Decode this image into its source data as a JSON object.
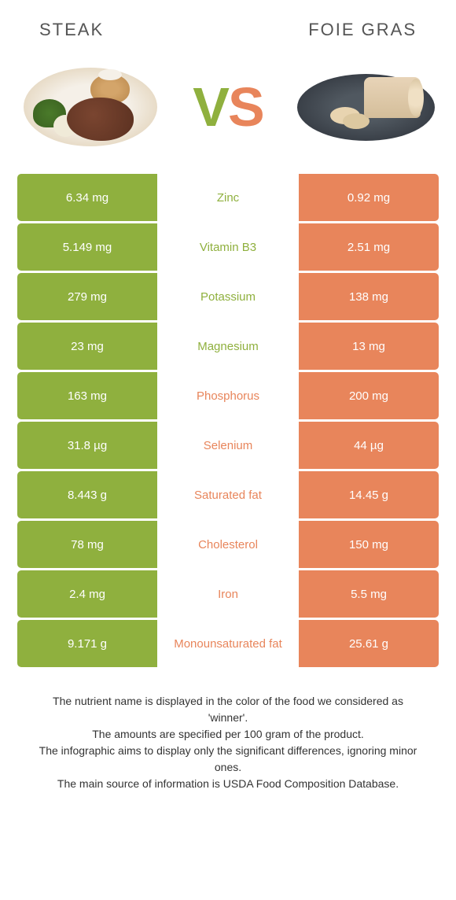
{
  "colors": {
    "left": "#8fb03e",
    "right": "#e8855b",
    "background": "#ffffff",
    "text": "#333333"
  },
  "header": {
    "left": "Steak",
    "right": "Foie gras"
  },
  "vs": {
    "v": "V",
    "s": "S"
  },
  "rows": [
    {
      "left": "6.34 mg",
      "label": "Zinc",
      "right": "0.92 mg",
      "winner": "left"
    },
    {
      "left": "5.149 mg",
      "label": "Vitamin B3",
      "right": "2.51 mg",
      "winner": "left"
    },
    {
      "left": "279 mg",
      "label": "Potassium",
      "right": "138 mg",
      "winner": "left"
    },
    {
      "left": "23 mg",
      "label": "Magnesium",
      "right": "13 mg",
      "winner": "left"
    },
    {
      "left": "163 mg",
      "label": "Phosphorus",
      "right": "200 mg",
      "winner": "right"
    },
    {
      "left": "31.8 µg",
      "label": "Selenium",
      "right": "44 µg",
      "winner": "right"
    },
    {
      "left": "8.443 g",
      "label": "Saturated fat",
      "right": "14.45 g",
      "winner": "right"
    },
    {
      "left": "78 mg",
      "label": "Cholesterol",
      "right": "150 mg",
      "winner": "right"
    },
    {
      "left": "2.4 mg",
      "label": "Iron",
      "right": "5.5 mg",
      "winner": "right"
    },
    {
      "left": "9.171 g",
      "label": "Monounsaturated fat",
      "right": "25.61 g",
      "winner": "right"
    }
  ],
  "footer": [
    "The nutrient name is displayed in the color of the food we considered as 'winner'.",
    "The amounts are specified per 100 gram of the product.",
    "The infographic aims to display only the significant differences, ignoring minor ones.",
    "The main source of information is USDA Food Composition Database."
  ]
}
